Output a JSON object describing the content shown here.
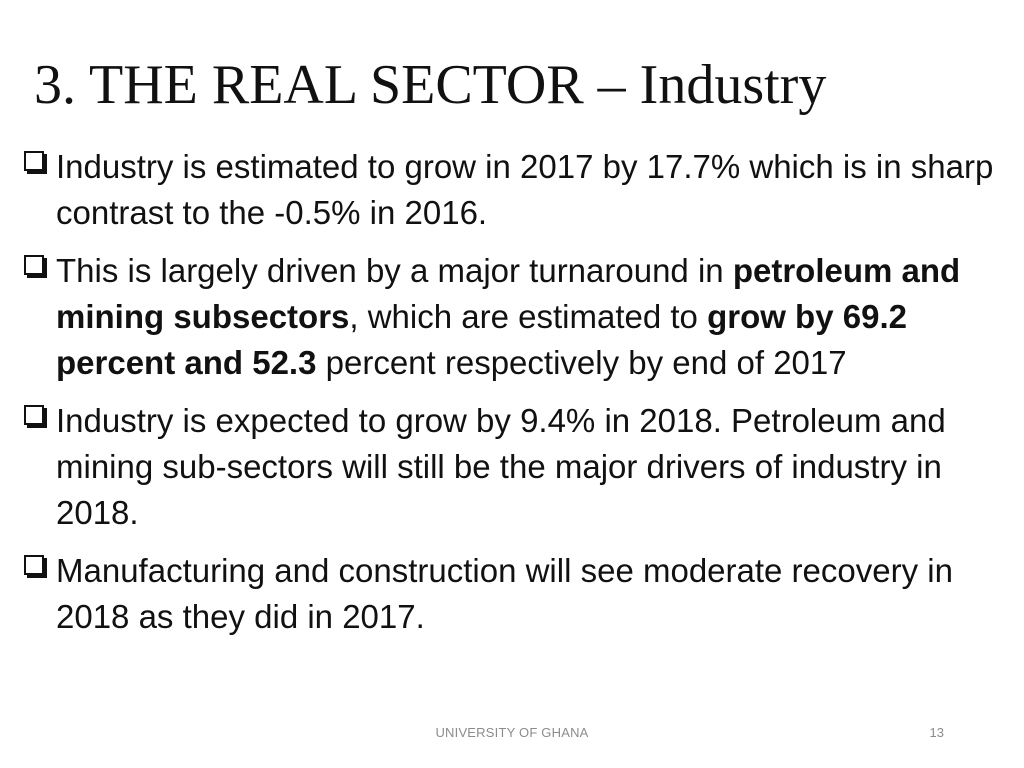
{
  "slide": {
    "title": "3. THE REAL SECTOR – Industry",
    "bullets": [
      {
        "icon": "checkbox-bullet-icon",
        "text": "Industry is estimated to grow in 2017 by 17.7% which is in sharp contrast to the -0.5% in 2016."
      },
      {
        "icon": "checkbox-bullet-icon",
        "part1": "This is largely driven by a major turnaround in ",
        "bold1": "petroleum and mining subsectors",
        "part2": ", which are estimated to ",
        "bold2": "grow by 69.2 percent and 52.3",
        "part3": " percent respectively by end of 2017"
      },
      {
        "icon": "checkbox-bullet-icon",
        "text": "Industry is expected to grow by 9.4% in 2018. Petroleum and mining sub-sectors will still be the major drivers of industry in 2018."
      },
      {
        "icon": "checkbox-bullet-icon",
        "text": " Manufacturing and construction will see moderate recovery in 2018 as they did in 2017."
      }
    ]
  },
  "footer": {
    "organization": "UNIVERSITY OF GHANA",
    "page_number": "13"
  }
}
